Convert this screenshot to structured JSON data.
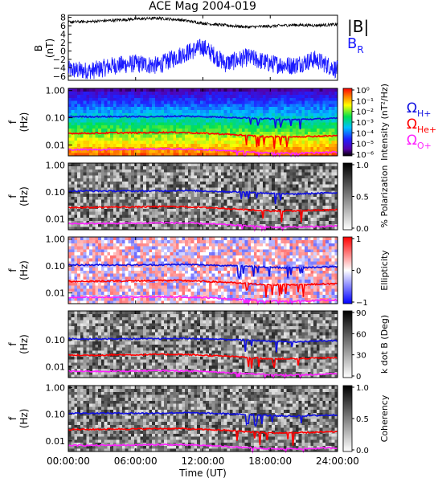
{
  "title": "ACE Mag 2004-019",
  "xaxis": {
    "label": "Time (UT)",
    "ticks": [
      "00:00:00",
      "06:00:00",
      "12:00:00",
      "18:00:00",
      "24:00:00"
    ],
    "range_hours": [
      0,
      24
    ]
  },
  "colors": {
    "B_total": "#000000",
    "B_R": "#1a1aff",
    "H_plus": "#1010e0",
    "He_plus": "#ff0000",
    "O_plus": "#ff22ff"
  },
  "legend_top": {
    "total": "|B|",
    "radial": "B",
    "radial_sub": "R"
  },
  "legend_ions": [
    {
      "symbol": "Ω",
      "sub": "H+",
      "color": "#1010e0"
    },
    {
      "symbol": "Ω",
      "sub": "He+",
      "color": "#ff0000"
    },
    {
      "symbol": "Ω",
      "sub": "O+",
      "color": "#ff22ff"
    }
  ],
  "panels": [
    {
      "id": "B",
      "ylabel": "B",
      "yunit": "(nT)",
      "yticks": [
        "8",
        "6",
        "4",
        "2",
        "0",
        "−2",
        "−4",
        "−6"
      ],
      "ylim": [
        -7,
        8.5
      ]
    },
    {
      "id": "intensity",
      "ylabel": "f",
      "yunit": "(Hz)",
      "yticks": [
        "1.00",
        "0.10",
        "0.01"
      ],
      "cbar": {
        "label": "Intensity (nT²/Hz)",
        "ticks": [
          "10⁰",
          "10⁻¹",
          "10⁻²",
          "10⁻³",
          "10⁻⁴",
          "10⁻⁵",
          "10⁻⁶"
        ]
      }
    },
    {
      "id": "polarization",
      "ylabel": "f",
      "yunit": "(Hz)",
      "yticks": [
        "1.00",
        "0.10",
        "0.01"
      ],
      "cbar": {
        "label": "% Polarization",
        "ticks": [
          "1.0",
          "0.5",
          "0.0"
        ]
      }
    },
    {
      "id": "ellipticity",
      "ylabel": "f",
      "yunit": "(Hz)",
      "yticks": [
        "1.00",
        "0.10",
        "0.01"
      ],
      "cbar": {
        "label": "Ellipticity",
        "ticks": [
          "1",
          "0",
          "−1"
        ]
      }
    },
    {
      "id": "kdotb",
      "ylabel": "f",
      "yunit": "(Hz)",
      "yticks": [
        "0.10",
        "0.01"
      ],
      "cbar": {
        "label": "k dot B (Deg)",
        "ticks": [
          "90",
          "60",
          "30",
          "0"
        ]
      }
    },
    {
      "id": "coherency",
      "ylabel": "f",
      "yunit": "(Hz)",
      "yticks": [
        "1.00",
        "0.10",
        "0.01"
      ],
      "cbar": {
        "label": "Coherency",
        "ticks": [
          "1.0",
          "0.5",
          "0.0"
        ]
      }
    }
  ],
  "chart_data": {
    "type": "line",
    "title": "ACE Mag 2004-019",
    "xlabel": "Time (UT)",
    "x_hours": [
      0,
      2,
      4,
      6,
      8,
      10,
      12,
      14,
      16,
      18,
      20,
      22,
      24
    ],
    "series": [
      {
        "name": "|B|",
        "values": [
          6.9,
          7.0,
          7.3,
          7.6,
          7.8,
          7.4,
          6.6,
          6.1,
          5.7,
          5.9,
          6.2,
          6.1,
          6.3
        ]
      },
      {
        "name": "B_R",
        "values": [
          -4.5,
          -4.8,
          -3.5,
          -3.0,
          -3.5,
          -1.0,
          1.0,
          -3.0,
          -1.5,
          -3.0,
          -3.5,
          -2.0,
          -4.5
        ]
      },
      {
        "name": "Ω_H+",
        "values": [
          0.11,
          0.11,
          0.11,
          0.11,
          0.11,
          0.115,
          0.11,
          0.105,
          0.098,
          0.09,
          0.085,
          0.09,
          0.095
        ]
      },
      {
        "name": "Ω_He+",
        "values": [
          0.027,
          0.027,
          0.028,
          0.028,
          0.029,
          0.029,
          0.027,
          0.025,
          0.022,
          0.02,
          0.02,
          0.021,
          0.022
        ]
      },
      {
        "name": "Ω_O+",
        "values": [
          0.0068,
          0.0068,
          0.0069,
          0.007,
          0.0072,
          0.0071,
          0.0068,
          0.0062,
          0.0056,
          0.005,
          0.005,
          0.0052,
          0.0055
        ]
      }
    ],
    "b_ylim": [
      -7,
      8.5
    ],
    "f_range_hz": [
      0.004,
      1.2
    ]
  }
}
